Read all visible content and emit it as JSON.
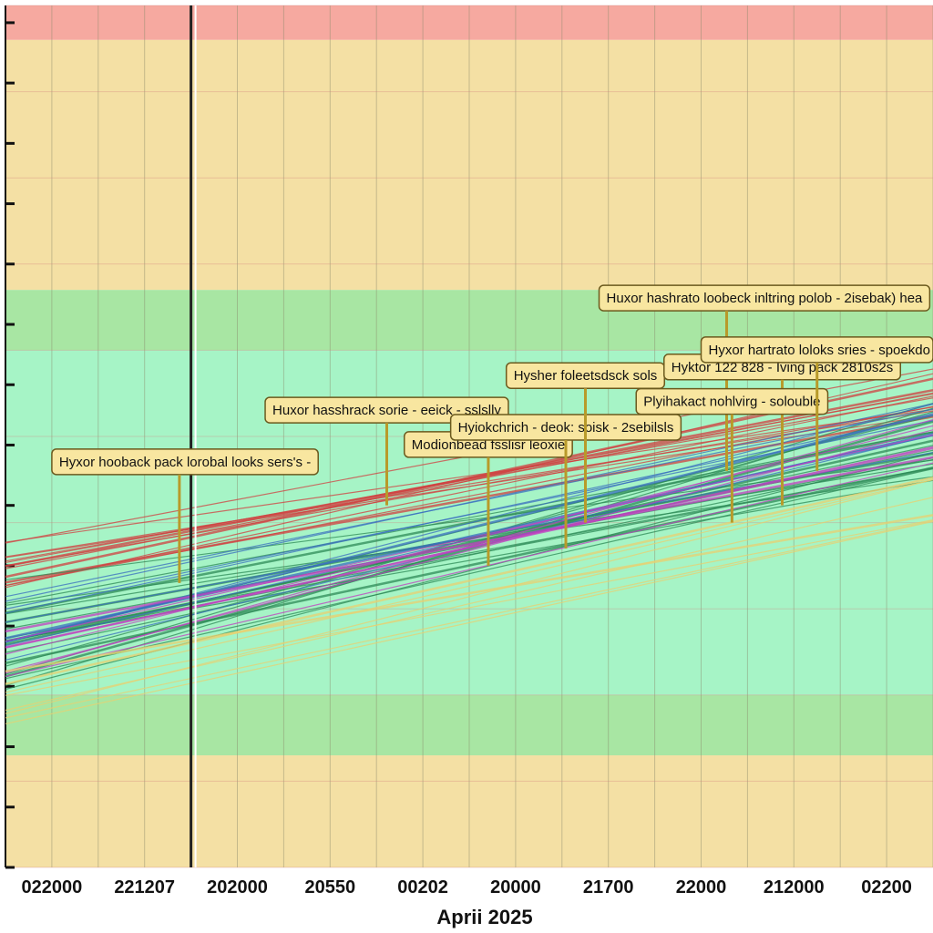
{
  "chart_data": {
    "type": "line",
    "title": "",
    "xlabel": "Aprii 2025",
    "ylabel": "",
    "x_tick_labels": [
      "022000",
      "221207",
      "202000",
      "20550",
      "00202",
      "20000",
      "21700",
      "22000",
      "212000",
      "02200"
    ],
    "x_range": [
      0,
      10
    ],
    "y_range": [
      0,
      100
    ],
    "grid": true,
    "bands": [
      {
        "from": 96,
        "to": 100,
        "color": "#f6a9a0"
      },
      {
        "from": 67,
        "to": 96,
        "color": "#f4e0a4"
      },
      {
        "from": 60,
        "to": 67,
        "color": "#a8e6a3"
      },
      {
        "from": 20,
        "to": 60,
        "color": "#a6f4c6"
      },
      {
        "from": 13,
        "to": 20,
        "color": "#a8e6a3"
      },
      {
        "from": 0,
        "to": 13,
        "color": "#f4e0a4"
      }
    ],
    "vertical_marker_x": 2.0,
    "series_groups": [
      {
        "color": "#d04040",
        "count": 14,
        "y_start": [
          32,
          38
        ],
        "y_end": [
          52,
          58
        ]
      },
      {
        "color": "#2e8b57",
        "count": 22,
        "y_start": [
          20,
          34
        ],
        "y_end": [
          44,
          54
        ]
      },
      {
        "color": "#3a6fbf",
        "count": 10,
        "y_start": [
          24,
          32
        ],
        "y_end": [
          48,
          54
        ]
      },
      {
        "color": "#c040c0",
        "count": 8,
        "y_start": [
          22,
          28
        ],
        "y_end": [
          46,
          52
        ]
      },
      {
        "color": "#e8d070",
        "count": 8,
        "y_start": [
          16,
          24
        ],
        "y_end": [
          40,
          46
        ]
      }
    ],
    "annotations": [
      {
        "text": "Hyxor hooback pack lorobal looks sers's -",
        "x": 0.5,
        "y": 46,
        "tip_y": 33
      },
      {
        "text": "Huxor hasshrack sorie - eeick - sslslly",
        "x": 2.8,
        "y": 52,
        "tip_y": 42
      },
      {
        "text": "Modionbead fsslisr leoxie",
        "x": 4.3,
        "y": 48,
        "tip_y": 35
      },
      {
        "text": "Hyiokchrich - deok: soisk - 2sebilsls",
        "x": 4.8,
        "y": 50,
        "tip_y": 37
      },
      {
        "text": "Hysher foleetsdsck sols",
        "x": 5.4,
        "y": 56,
        "tip_y": 40
      },
      {
        "text": "Huxor hashrato loobeck inltring polob - 2isebak) hea",
        "x": 6.4,
        "y": 65,
        "tip_y": 46
      },
      {
        "text": "Hyktor 122 828 - Iving pack 2810s2s",
        "x": 7.1,
        "y": 57,
        "tip_y": 42
      },
      {
        "text": "Plyihakact nohlvirg - solouble",
        "x": 6.8,
        "y": 53,
        "tip_y": 40
      },
      {
        "text": "Hyxor hartrato loloks sries - spoekdo",
        "x": 7.5,
        "y": 59,
        "tip_y": 46
      }
    ]
  }
}
